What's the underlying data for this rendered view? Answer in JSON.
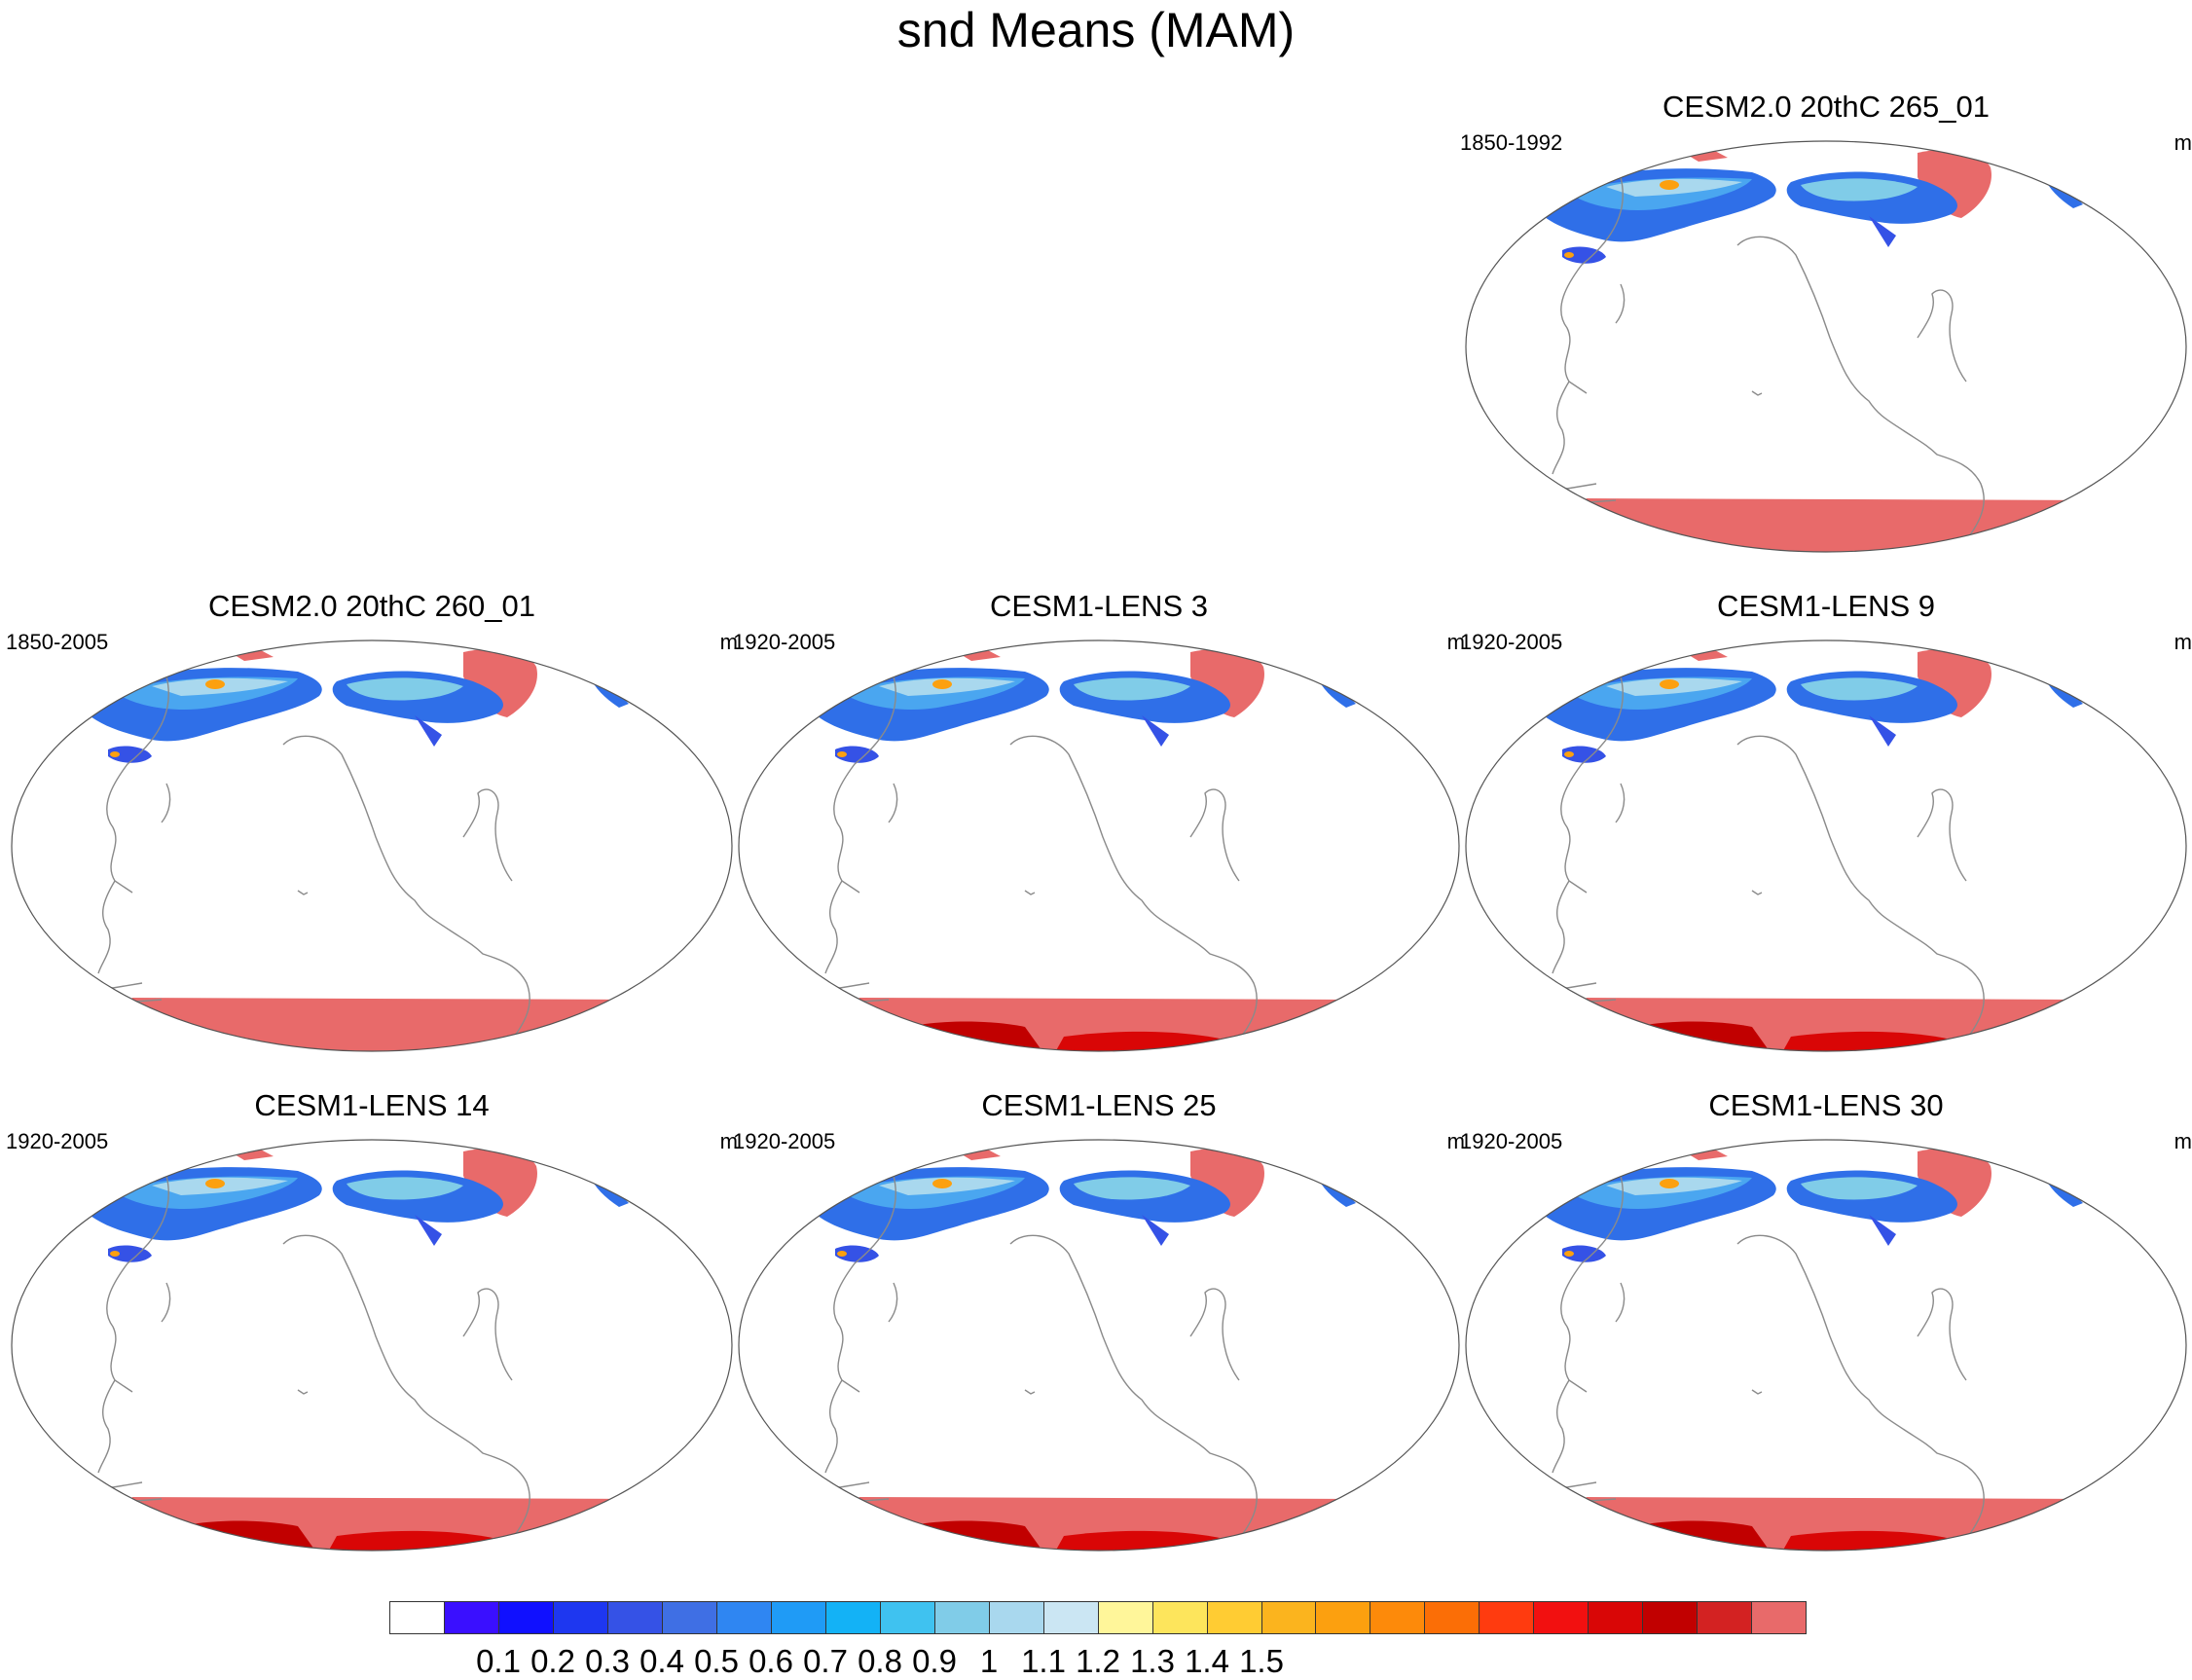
{
  "title": "snd Means (MAM)",
  "units_label": "m",
  "panels": [
    {
      "title": "CESM2.0 20thC 265_01",
      "period": "1850-1992",
      "antarctic_deep": false
    },
    {
      "title": "CESM2.0 20thC 260_01",
      "period": "1850-2005",
      "antarctic_deep": false
    },
    {
      "title": "CESM1-LENS 3",
      "period": "1920-2005",
      "antarctic_deep": true
    },
    {
      "title": "CESM1-LENS 9",
      "period": "1920-2005",
      "antarctic_deep": true
    },
    {
      "title": "CESM1-LENS 14",
      "period": "1920-2005",
      "antarctic_deep": true
    },
    {
      "title": "CESM1-LENS 25",
      "period": "1920-2005",
      "antarctic_deep": true
    },
    {
      "title": "CESM1-LENS 30",
      "period": "1920-2005",
      "antarctic_deep": true
    }
  ],
  "colorbar": {
    "colors": [
      "#ffffff",
      "#3a0fff",
      "#1010ff",
      "#1e37f0",
      "#3552e6",
      "#3f6fe4",
      "#2f86f2",
      "#1f9bf6",
      "#13b2f6",
      "#3fc2f0",
      "#80cce8",
      "#a9d8ee",
      "#cbe6f3",
      "#fff69a",
      "#fde55c",
      "#ffcc33",
      "#fbb41e",
      "#fca00f",
      "#fd8a0a",
      "#fb6e06",
      "#ff3b0f",
      "#f21010",
      "#d90606",
      "#c10000",
      "#d32222",
      "#e86a6a"
    ],
    "labels": [
      "0.1",
      "0.2",
      "0.3",
      "0.4",
      "0.5",
      "0.6",
      "0.7",
      "0.8",
      "0.9",
      "1",
      "1.1",
      "1.2",
      "1.3",
      "1.4",
      "1.5"
    ]
  }
}
